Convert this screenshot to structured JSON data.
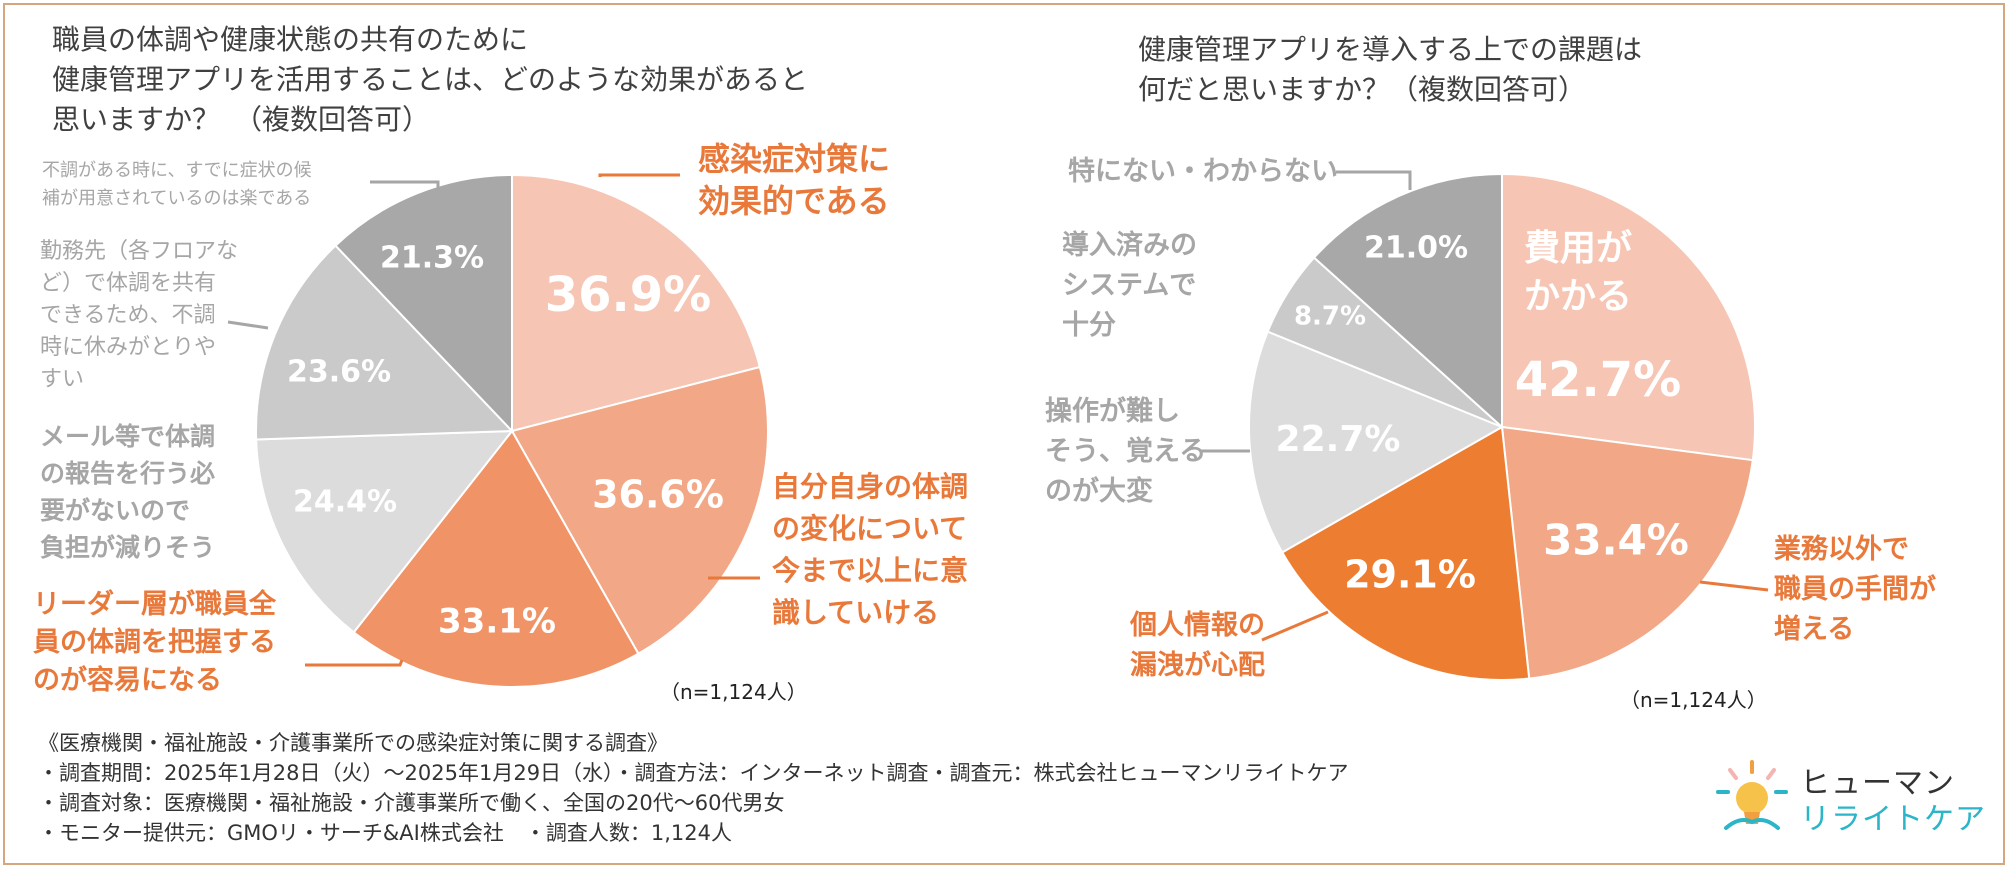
{
  "chart_data": [
    {
      "type": "pie",
      "title_lines": [
        "職員の体調や健康状態の共有のために",
        "健康管理アプリを活用することは、どのような効果があると",
        "思いますか？　（複数回答可）"
      ],
      "slices": [
        {
          "label_lines": [
            "感染症対策に",
            "効果的である"
          ],
          "value": 36.9,
          "display": "36.9%",
          "color": "#f6c5b3",
          "label_color": "#e8793a",
          "highlight": true
        },
        {
          "label_lines": [
            "自分自身の体調",
            "の変化について",
            "今まで以上に意",
            "識していける"
          ],
          "value": 36.6,
          "display": "36.6%",
          "color": "#f2a887",
          "label_color": "#e8793a",
          "highlight": false
        },
        {
          "label_lines": [
            "リーダー層が職員全",
            "員の体調を把握する",
            "のが容易になる"
          ],
          "value": 33.1,
          "display": "33.1%",
          "color": "#f09468",
          "label_color": "#e8793a",
          "highlight": false
        },
        {
          "label_lines": [
            "メール等で体調",
            "の報告を行う必",
            "要がないので",
            "負担が減りそう"
          ],
          "value": 24.4,
          "display": "24.4%",
          "color": "#dcdcdc",
          "label_color": "#a6a6a6",
          "highlight": false
        },
        {
          "label_lines": [
            "勤務先（各フロアな",
            "ど）で体調を共有",
            "できるため、不調",
            "時に休みがとりや",
            "すい"
          ],
          "value": 23.6,
          "display": "23.6%",
          "color": "#cacaca",
          "label_color": "#a6a6a6",
          "highlight": false
        },
        {
          "label_lines": [
            "不調がある時に、すでに症状の候",
            "補が用意されているのは楽である"
          ],
          "value": 21.3,
          "display": "21.3%",
          "color": "#a8a8a8",
          "label_color": "#a6a6a6",
          "highlight": false
        }
      ],
      "sample": "（n=1,124人）"
    },
    {
      "type": "pie",
      "title_lines": [
        "健康管理アプリを導入する上での課題は",
        "何だと思いますか？（複数回答可）"
      ],
      "slices": [
        {
          "label_lines": [
            "費用が",
            "かかる"
          ],
          "value": 42.7,
          "display": "42.7%",
          "color": "#f6c5b3",
          "label_color": "#ffffff",
          "highlight": true
        },
        {
          "label_lines": [
            "業務以外で",
            "職員の手間が",
            "増える"
          ],
          "value": 33.4,
          "display": "33.4%",
          "color": "#f2a887",
          "label_color": "#e8793a",
          "highlight": false
        },
        {
          "label_lines": [
            "個人情報の",
            "漏洩が心配"
          ],
          "value": 29.1,
          "display": "29.1%",
          "color": "#ed7d31",
          "label_color": "#e8793a",
          "highlight": false
        },
        {
          "label_lines": [
            "操作が難し",
            "そう、覚える",
            "のが大変"
          ],
          "value": 22.7,
          "display": "22.7%",
          "color": "#dcdcdc",
          "label_color": "#a6a6a6",
          "highlight": false
        },
        {
          "label_lines": [
            "導入済みの",
            "システムで",
            "十分"
          ],
          "value": 8.7,
          "display": "8.7%",
          "color": "#cacaca",
          "label_color": "#a6a6a6",
          "highlight": false
        },
        {
          "label_lines": [
            "特にない・わからない"
          ],
          "value": 21.0,
          "display": "21.0%",
          "color": "#a8a8a8",
          "label_color": "#a6a6a6",
          "highlight": false
        }
      ],
      "sample": "（n=1,124人）"
    }
  ],
  "survey": {
    "heading": "《医療機関・福祉施設・介護事業所での感染症対策に関する調査》",
    "lines": [
      "・調査期間：2025年1月28日（火）～2025年1月29日（水）・調査方法：インターネット調査・調査元：株式会社ヒューマンリライトケア",
      "・調査対象：医療機関・福祉施設・介護事業所で働く、全国の20代～60代男女",
      "・モニター提供元：GMOリ・サーチ&AI株式会社　・調査人数：1,124人"
    ]
  },
  "logo": {
    "line1": "ヒューマン",
    "line2": "リライトケア",
    "icon": "lightbulb-hand-icon",
    "colors": {
      "cyan": "#2bb5c8",
      "orange": "#f0a040",
      "pink": "#f4b5b0"
    }
  }
}
